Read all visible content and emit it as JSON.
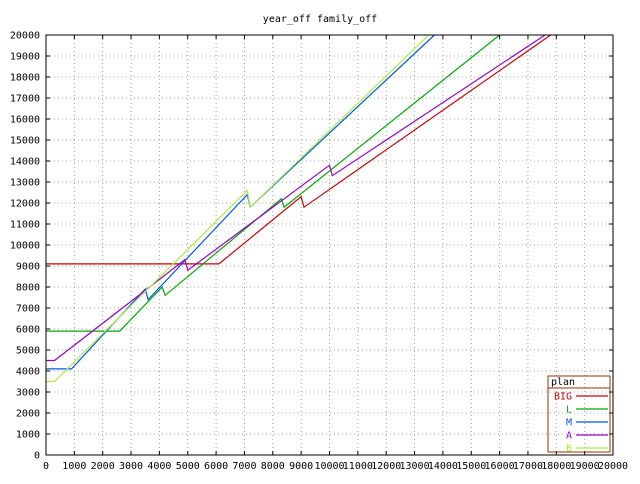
{
  "chart_data": {
    "type": "line",
    "title": "year_off family_off",
    "xlabel": "",
    "ylabel": "",
    "xlim": [
      0,
      20000
    ],
    "ylim": [
      0,
      20000
    ],
    "grid": true,
    "legend_position": "bottom-right",
    "legend_title": "plan",
    "x_ticks": [
      0,
      1000,
      2000,
      3000,
      4000,
      5000,
      6000,
      7000,
      8000,
      9000,
      10000,
      11000,
      12000,
      13000,
      14000,
      15000,
      16000,
      17000,
      18000,
      19000,
      20000
    ],
    "y_ticks": [
      0,
      1000,
      2000,
      3000,
      4000,
      5000,
      6000,
      7000,
      8000,
      9000,
      10000,
      11000,
      12000,
      13000,
      14000,
      15000,
      16000,
      17000,
      18000,
      19000,
      20000
    ],
    "series": [
      {
        "name": "BIG",
        "color": "#cc0000",
        "points": [
          [
            0,
            9100
          ],
          [
            6100,
            9100
          ],
          [
            9000,
            12300
          ],
          [
            9100,
            11800
          ],
          [
            17800,
            20000
          ]
        ]
      },
      {
        "name": "L",
        "color": "#00aa00",
        "points": [
          [
            0,
            5900
          ],
          [
            2600,
            5900
          ],
          [
            4100,
            8000
          ],
          [
            4200,
            7600
          ],
          [
            8300,
            12200
          ],
          [
            8400,
            11800
          ],
          [
            16000,
            20000
          ]
        ]
      },
      {
        "name": "M",
        "color": "#0055ee",
        "points": [
          [
            0,
            4100
          ],
          [
            900,
            4100
          ],
          [
            3500,
            7900
          ],
          [
            3600,
            7400
          ],
          [
            7100,
            12400
          ],
          [
            7200,
            11800
          ],
          [
            13700,
            20000
          ]
        ]
      },
      {
        "name": "A",
        "color": "#9900cc",
        "points": [
          [
            0,
            4500
          ],
          [
            300,
            4500
          ],
          [
            4900,
            9300
          ],
          [
            5000,
            8800
          ],
          [
            10000,
            13800
          ],
          [
            10100,
            13300
          ],
          [
            17600,
            20000
          ]
        ]
      },
      {
        "name": "B",
        "color": "#aaee44",
        "points": [
          [
            0,
            3500
          ],
          [
            300,
            3500
          ],
          [
            7100,
            12600
          ],
          [
            7200,
            11800
          ],
          [
            13500,
            20000
          ]
        ]
      }
    ]
  }
}
